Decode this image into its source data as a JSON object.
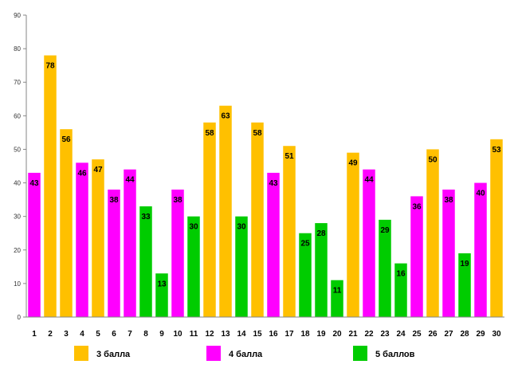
{
  "chart_data": {
    "type": "bar",
    "title": "",
    "xlabel": "",
    "ylabel": "",
    "ylim": [
      0,
      90
    ],
    "yticks": [
      0,
      10,
      20,
      30,
      40,
      50,
      60,
      70,
      80,
      90
    ],
    "grid": false,
    "legend_position": "bottom",
    "categories": [
      "1",
      "2",
      "3",
      "4",
      "5",
      "6",
      "7",
      "8",
      "9",
      "10",
      "11",
      "12",
      "13",
      "14",
      "15",
      "16",
      "17",
      "18",
      "19",
      "20",
      "21",
      "22",
      "23",
      "24",
      "25",
      "26",
      "27",
      "28",
      "29",
      "30"
    ],
    "values": [
      43,
      78,
      56,
      46,
      47,
      38,
      44,
      33,
      13,
      38,
      30,
      58,
      63,
      30,
      58,
      43,
      51,
      25,
      28,
      11,
      49,
      44,
      29,
      16,
      36,
      50,
      38,
      19,
      40,
      53
    ],
    "groups": [
      "4",
      "3",
      "3",
      "4",
      "3",
      "4",
      "4",
      "5",
      "5",
      "4",
      "5",
      "3",
      "3",
      "5",
      "3",
      "4",
      "3",
      "5",
      "5",
      "5",
      "3",
      "4",
      "5",
      "5",
      "4",
      "3",
      "4",
      "5",
      "4",
      "3"
    ],
    "legend": [
      {
        "key": "3",
        "label": "3 балла",
        "color": "#FFC000"
      },
      {
        "key": "4",
        "label": "4 балла",
        "color": "#FF00FF"
      },
      {
        "key": "5",
        "label": "5 баллов",
        "color": "#00CC00"
      }
    ]
  }
}
